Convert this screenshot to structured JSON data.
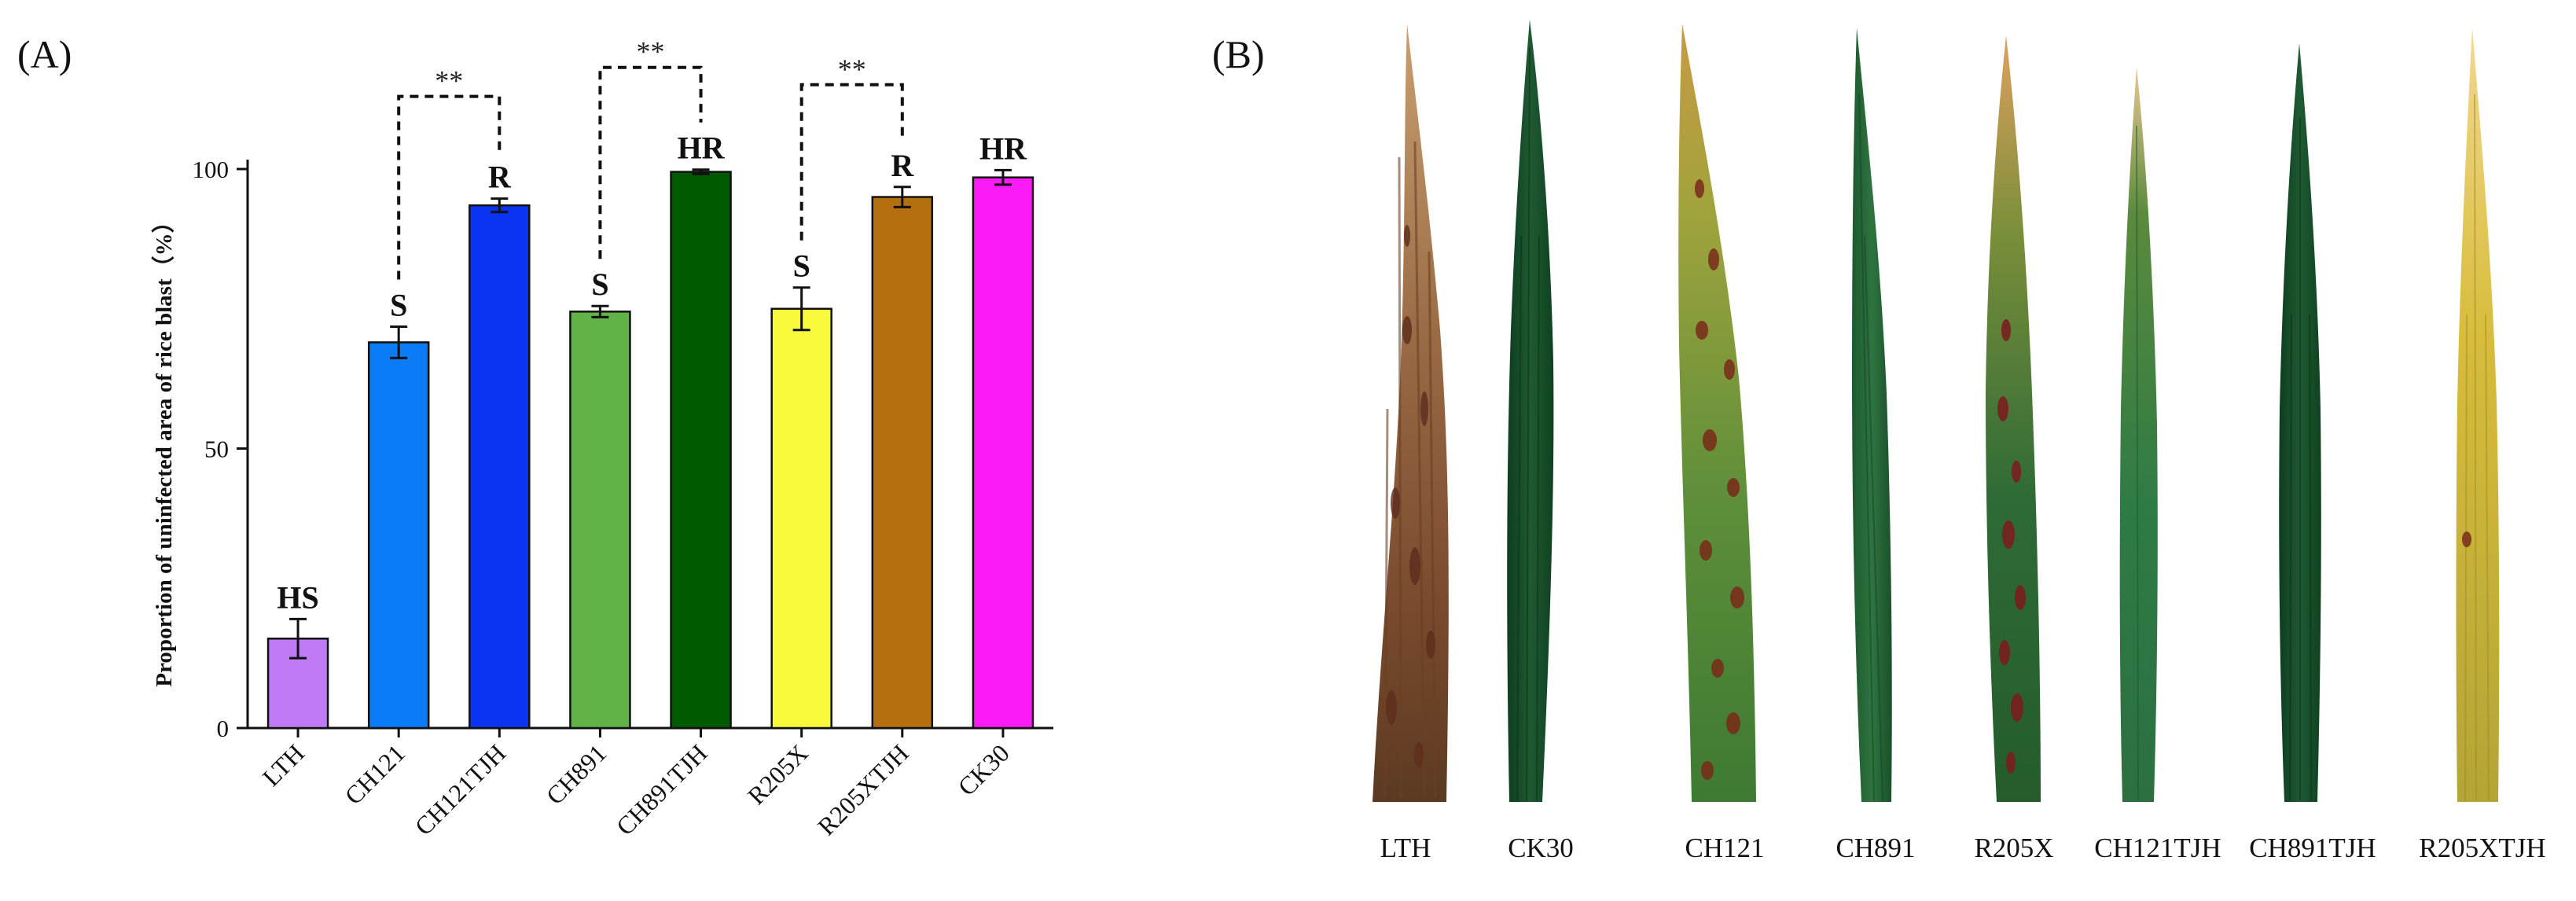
{
  "panel_a_label": "(A)",
  "panel_b_label": "(B)",
  "chart_data": {
    "type": "bar",
    "title": "",
    "xlabel": "",
    "ylabel": "Proportion of uninfected area of rice blast（%）",
    "ylim": [
      0,
      100
    ],
    "yticks": [
      "0",
      "50",
      "100"
    ],
    "categories": [
      "LTH",
      "CH121",
      "CH121TJH",
      "CH891",
      "CH891TJH",
      "R205X",
      "R205XTJH",
      "CK30"
    ],
    "values": [
      16,
      69,
      93.5,
      74.5,
      99.5,
      75,
      95,
      98.5
    ],
    "errors": [
      3.5,
      2.8,
      1.2,
      1.0,
      0.4,
      3.8,
      1.8,
      1.3
    ],
    "colors": [
      "#c17af5",
      "#0a7cf7",
      "#0a33f2",
      "#61b347",
      "#005a00",
      "#fafa3c",
      "#b4700e",
      "#fb1cf5"
    ],
    "bar_labels": [
      "HS",
      "S",
      "R",
      "S",
      "HR",
      "S",
      "R",
      "HR"
    ],
    "significance": [
      {
        "from": 1,
        "to": 2,
        "label": "**"
      },
      {
        "from": 3,
        "to": 4,
        "label": "**"
      },
      {
        "from": 5,
        "to": 6,
        "label": "**"
      }
    ]
  },
  "leaves": [
    {
      "label": "LTH"
    },
    {
      "label": "CK30"
    },
    {
      "label": "CH121"
    },
    {
      "label": "CH891"
    },
    {
      "label": "R205X"
    },
    {
      "label": "CH121TJH"
    },
    {
      "label": "CH891TJH"
    },
    {
      "label": "R205XTJH"
    }
  ]
}
